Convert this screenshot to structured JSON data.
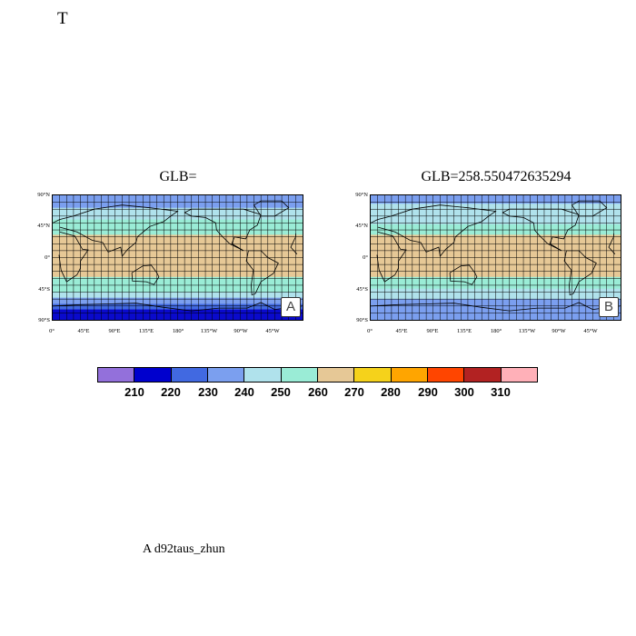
{
  "page_title": "T",
  "footer_label": "A  d92taus_zhun",
  "lat_labels": [
    "90°N",
    "45°N",
    "0°",
    "45°S",
    "90°S"
  ],
  "lon_labels": [
    "0°",
    "45°E",
    "90°E",
    "135°E",
    "180°",
    "135°W",
    "90°W",
    "45°W"
  ],
  "panels": [
    {
      "title": "GLB=",
      "badge": "A",
      "bands": [
        {
          "lat_from": 90,
          "lat_to": 72,
          "color": "#7b9fef"
        },
        {
          "lat_from": 72,
          "lat_to": 55,
          "color": "#b0e2ec"
        },
        {
          "lat_from": 55,
          "lat_to": 33,
          "color": "#9aecd6"
        },
        {
          "lat_from": 33,
          "lat_to": -28,
          "color": "#e6c896"
        },
        {
          "lat_from": -28,
          "lat_to": -50,
          "color": "#9aecd6"
        },
        {
          "lat_from": -50,
          "lat_to": -58,
          "color": "#b0e2ec"
        },
        {
          "lat_from": -58,
          "lat_to": -67,
          "color": "#7b9fef"
        },
        {
          "lat_from": -67,
          "lat_to": -75,
          "color": "#4169e1"
        },
        {
          "lat_from": -75,
          "lat_to": -90,
          "color": "#0a0acc"
        }
      ]
    },
    {
      "title": "GLB=258.550472635294",
      "badge": "B",
      "bands": [
        {
          "lat_from": 90,
          "lat_to": 78,
          "color": "#7b9fef"
        },
        {
          "lat_from": 78,
          "lat_to": 48,
          "color": "#b0e2ec"
        },
        {
          "lat_from": 48,
          "lat_to": 33,
          "color": "#9aecd6"
        },
        {
          "lat_from": 33,
          "lat_to": -28,
          "color": "#e6c896"
        },
        {
          "lat_from": -28,
          "lat_to": -45,
          "color": "#9aecd6"
        },
        {
          "lat_from": -45,
          "lat_to": -60,
          "color": "#b0e2ec"
        },
        {
          "lat_from": -60,
          "lat_to": -90,
          "color": "#7b9fef"
        }
      ]
    }
  ],
  "colorbar": {
    "colors": [
      "#9370db",
      "#0000cd",
      "#4169e1",
      "#7b9fef",
      "#b0e2ec",
      "#9aecd6",
      "#e6c896",
      "#f5d21b",
      "#ffa500",
      "#ff4500",
      "#b22222",
      "#ffb0b8"
    ],
    "ticks": [
      "210",
      "220",
      "230",
      "240",
      "250",
      "260",
      "270",
      "280",
      "290",
      "300",
      "310"
    ]
  }
}
